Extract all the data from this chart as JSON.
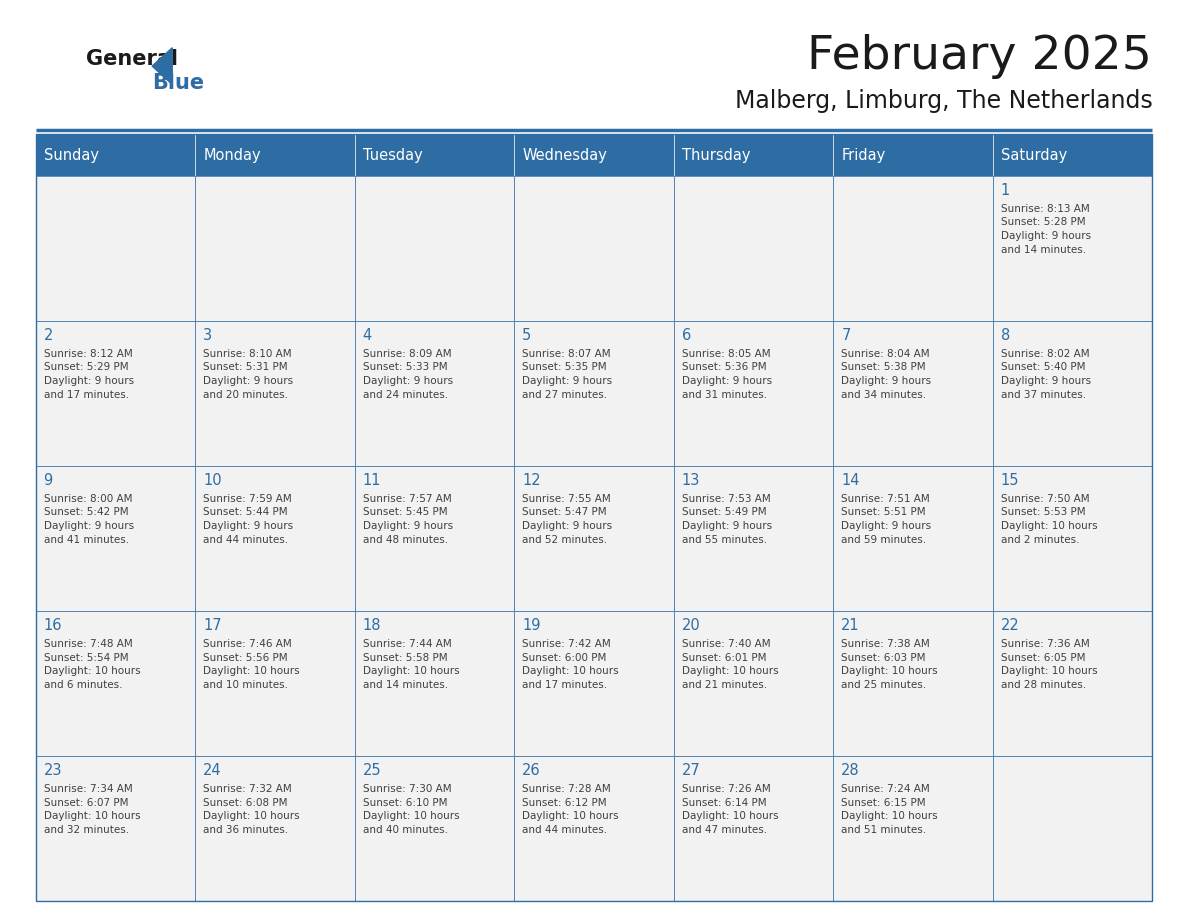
{
  "title": "February 2025",
  "subtitle": "Malberg, Limburg, The Netherlands",
  "days_of_week": [
    "Sunday",
    "Monday",
    "Tuesday",
    "Wednesday",
    "Thursday",
    "Friday",
    "Saturday"
  ],
  "header_bg": "#2E6DA4",
  "header_text": "#FFFFFF",
  "cell_bg": "#F2F2F2",
  "border_color": "#2E6DA4",
  "day_number_color": "#2E6DA4",
  "info_color": "#404040",
  "title_color": "#1a1a1a",
  "subtitle_color": "#1a1a1a",
  "logo_general_color": "#1a1a1a",
  "logo_blue_color": "#2E6DA4",
  "logo_triangle_color": "#2E6DA4",
  "calendar_data": [
    [
      {
        "day": null,
        "info": ""
      },
      {
        "day": null,
        "info": ""
      },
      {
        "day": null,
        "info": ""
      },
      {
        "day": null,
        "info": ""
      },
      {
        "day": null,
        "info": ""
      },
      {
        "day": null,
        "info": ""
      },
      {
        "day": 1,
        "info": "Sunrise: 8:13 AM\nSunset: 5:28 PM\nDaylight: 9 hours\nand 14 minutes."
      }
    ],
    [
      {
        "day": 2,
        "info": "Sunrise: 8:12 AM\nSunset: 5:29 PM\nDaylight: 9 hours\nand 17 minutes."
      },
      {
        "day": 3,
        "info": "Sunrise: 8:10 AM\nSunset: 5:31 PM\nDaylight: 9 hours\nand 20 minutes."
      },
      {
        "day": 4,
        "info": "Sunrise: 8:09 AM\nSunset: 5:33 PM\nDaylight: 9 hours\nand 24 minutes."
      },
      {
        "day": 5,
        "info": "Sunrise: 8:07 AM\nSunset: 5:35 PM\nDaylight: 9 hours\nand 27 minutes."
      },
      {
        "day": 6,
        "info": "Sunrise: 8:05 AM\nSunset: 5:36 PM\nDaylight: 9 hours\nand 31 minutes."
      },
      {
        "day": 7,
        "info": "Sunrise: 8:04 AM\nSunset: 5:38 PM\nDaylight: 9 hours\nand 34 minutes."
      },
      {
        "day": 8,
        "info": "Sunrise: 8:02 AM\nSunset: 5:40 PM\nDaylight: 9 hours\nand 37 minutes."
      }
    ],
    [
      {
        "day": 9,
        "info": "Sunrise: 8:00 AM\nSunset: 5:42 PM\nDaylight: 9 hours\nand 41 minutes."
      },
      {
        "day": 10,
        "info": "Sunrise: 7:59 AM\nSunset: 5:44 PM\nDaylight: 9 hours\nand 44 minutes."
      },
      {
        "day": 11,
        "info": "Sunrise: 7:57 AM\nSunset: 5:45 PM\nDaylight: 9 hours\nand 48 minutes."
      },
      {
        "day": 12,
        "info": "Sunrise: 7:55 AM\nSunset: 5:47 PM\nDaylight: 9 hours\nand 52 minutes."
      },
      {
        "day": 13,
        "info": "Sunrise: 7:53 AM\nSunset: 5:49 PM\nDaylight: 9 hours\nand 55 minutes."
      },
      {
        "day": 14,
        "info": "Sunrise: 7:51 AM\nSunset: 5:51 PM\nDaylight: 9 hours\nand 59 minutes."
      },
      {
        "day": 15,
        "info": "Sunrise: 7:50 AM\nSunset: 5:53 PM\nDaylight: 10 hours\nand 2 minutes."
      }
    ],
    [
      {
        "day": 16,
        "info": "Sunrise: 7:48 AM\nSunset: 5:54 PM\nDaylight: 10 hours\nand 6 minutes."
      },
      {
        "day": 17,
        "info": "Sunrise: 7:46 AM\nSunset: 5:56 PM\nDaylight: 10 hours\nand 10 minutes."
      },
      {
        "day": 18,
        "info": "Sunrise: 7:44 AM\nSunset: 5:58 PM\nDaylight: 10 hours\nand 14 minutes."
      },
      {
        "day": 19,
        "info": "Sunrise: 7:42 AM\nSunset: 6:00 PM\nDaylight: 10 hours\nand 17 minutes."
      },
      {
        "day": 20,
        "info": "Sunrise: 7:40 AM\nSunset: 6:01 PM\nDaylight: 10 hours\nand 21 minutes."
      },
      {
        "day": 21,
        "info": "Sunrise: 7:38 AM\nSunset: 6:03 PM\nDaylight: 10 hours\nand 25 minutes."
      },
      {
        "day": 22,
        "info": "Sunrise: 7:36 AM\nSunset: 6:05 PM\nDaylight: 10 hours\nand 28 minutes."
      }
    ],
    [
      {
        "day": 23,
        "info": "Sunrise: 7:34 AM\nSunset: 6:07 PM\nDaylight: 10 hours\nand 32 minutes."
      },
      {
        "day": 24,
        "info": "Sunrise: 7:32 AM\nSunset: 6:08 PM\nDaylight: 10 hours\nand 36 minutes."
      },
      {
        "day": 25,
        "info": "Sunrise: 7:30 AM\nSunset: 6:10 PM\nDaylight: 10 hours\nand 40 minutes."
      },
      {
        "day": 26,
        "info": "Sunrise: 7:28 AM\nSunset: 6:12 PM\nDaylight: 10 hours\nand 44 minutes."
      },
      {
        "day": 27,
        "info": "Sunrise: 7:26 AM\nSunset: 6:14 PM\nDaylight: 10 hours\nand 47 minutes."
      },
      {
        "day": 28,
        "info": "Sunrise: 7:24 AM\nSunset: 6:15 PM\nDaylight: 10 hours\nand 51 minutes."
      },
      {
        "day": null,
        "info": ""
      }
    ]
  ]
}
